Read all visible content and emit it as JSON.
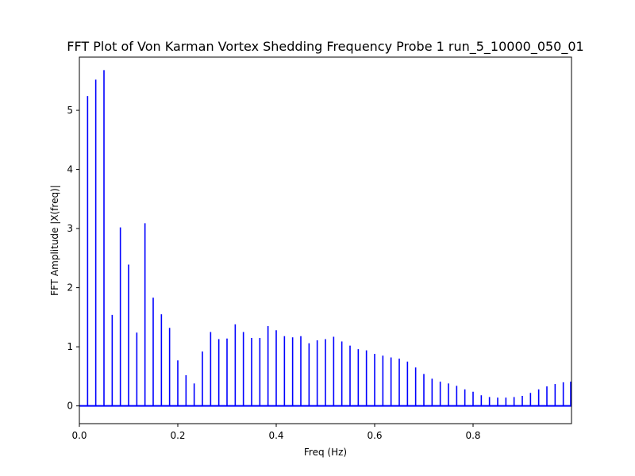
{
  "chart_data": {
    "type": "bar",
    "style": "stem",
    "title": "FFT Plot of Von Karman Vortex Shedding Frequency Probe 1 run_5_10000_050_01",
    "xlabel": "Freq (Hz)",
    "ylabel": "FFT Amplitude |X(freq)|",
    "xlim": [
      0,
      1.0
    ],
    "ylim": [
      -0.3,
      5.9
    ],
    "xticks": [
      0.0,
      0.2,
      0.4,
      0.6,
      0.8
    ],
    "xtick_labels": [
      "0.0",
      "0.2",
      "0.4",
      "0.6",
      "0.8"
    ],
    "yticks": [
      0,
      1,
      2,
      3,
      4,
      5
    ],
    "ytick_labels": [
      "0",
      "1",
      "2",
      "3",
      "4",
      "5"
    ],
    "grid": false,
    "legend": "none",
    "color": "#0000ff",
    "x": [
      0.0167,
      0.0333,
      0.05,
      0.0667,
      0.0833,
      0.1,
      0.1167,
      0.1333,
      0.15,
      0.1667,
      0.1833,
      0.2,
      0.2167,
      0.2333,
      0.25,
      0.2667,
      0.2833,
      0.3,
      0.3167,
      0.3333,
      0.35,
      0.3667,
      0.3833,
      0.4,
      0.4167,
      0.4333,
      0.45,
      0.4667,
      0.4833,
      0.5,
      0.5167,
      0.5333,
      0.55,
      0.5667,
      0.5833,
      0.6,
      0.6167,
      0.6333,
      0.65,
      0.6667,
      0.6833,
      0.7,
      0.7167,
      0.7333,
      0.75,
      0.7667,
      0.7833,
      0.8,
      0.8167,
      0.8333,
      0.85,
      0.8667,
      0.8833,
      0.9,
      0.9167,
      0.9333,
      0.95,
      0.9667,
      0.9833,
      1.0
    ],
    "values": [
      5.24,
      5.52,
      5.68,
      1.54,
      3.02,
      2.39,
      1.24,
      3.09,
      1.83,
      1.55,
      1.32,
      0.77,
      0.52,
      0.38,
      0.92,
      1.25,
      1.13,
      1.14,
      1.38,
      1.25,
      1.15,
      1.15,
      1.35,
      1.28,
      1.18,
      1.16,
      1.18,
      1.06,
      1.11,
      1.13,
      1.17,
      1.09,
      1.02,
      0.96,
      0.94,
      0.88,
      0.85,
      0.82,
      0.8,
      0.75,
      0.65,
      0.54,
      0.46,
      0.41,
      0.38,
      0.34,
      0.28,
      0.24,
      0.18,
      0.15,
      0.14,
      0.14,
      0.15,
      0.17,
      0.22,
      0.28,
      0.33,
      0.37,
      0.4,
      0.41
    ]
  }
}
